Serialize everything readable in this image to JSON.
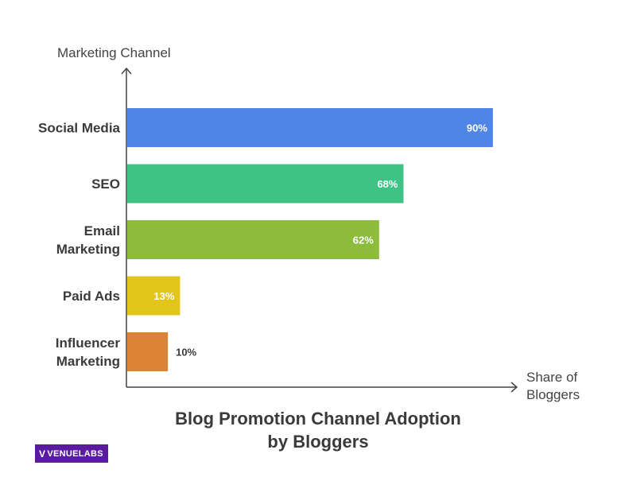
{
  "chart_data": {
    "type": "bar",
    "orientation": "horizontal",
    "title_lines": [
      "Blog Promotion Channel Adoption",
      "by Bloggers"
    ],
    "ylabel": "Marketing Channel",
    "xlabel_lines": [
      "Share of",
      "Bloggers"
    ],
    "xlim": [
      0,
      100
    ],
    "grid": false,
    "categories": [
      {
        "lines": [
          "Social Media"
        ]
      },
      {
        "lines": [
          "SEO"
        ]
      },
      {
        "lines": [
          "Email",
          "Marketing"
        ]
      },
      {
        "lines": [
          "Paid Ads"
        ]
      },
      {
        "lines": [
          "Influencer",
          "Marketing"
        ]
      }
    ],
    "values": [
      90,
      68,
      62,
      13,
      10
    ],
    "value_labels": [
      "90%",
      "68%",
      "62%",
      "13%",
      "10%"
    ],
    "colors": [
      "#4f86e6",
      "#3dc384",
      "#8dbc3d",
      "#e2c51b",
      "#dd8434"
    ],
    "value_label_colors": [
      "#ffffff",
      "#ffffff",
      "#ffffff",
      "#ffffff",
      "#3a3a3a"
    ]
  },
  "logo": {
    "mark": "V",
    "text": "VENUELABS"
  }
}
